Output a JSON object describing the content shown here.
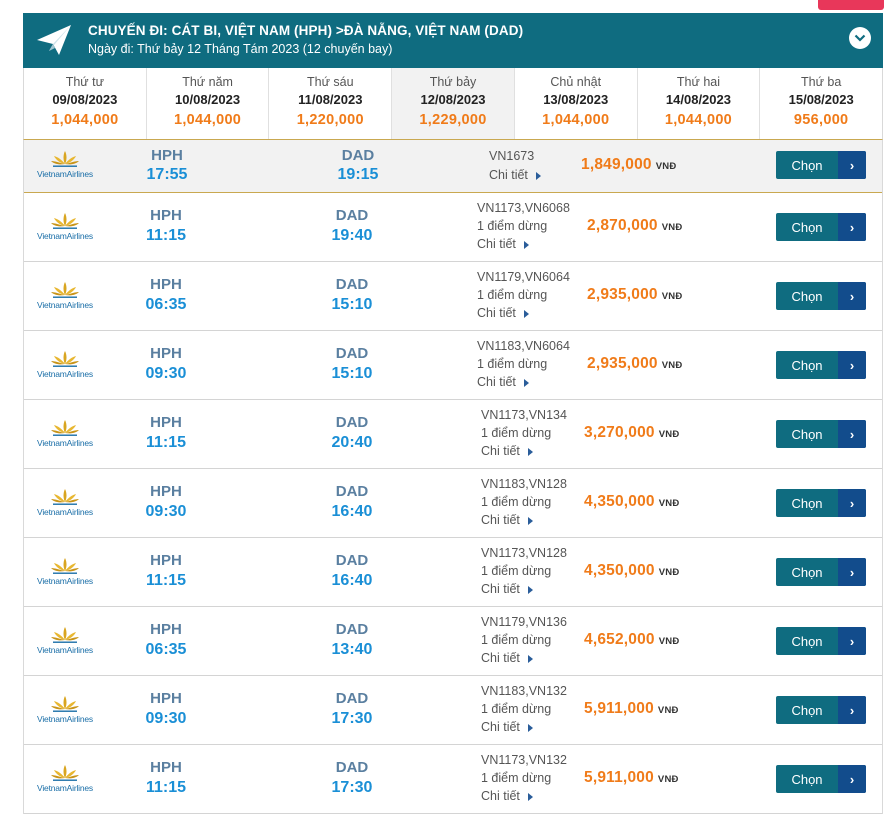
{
  "header": {
    "title": "CHUYẾN ĐI: CÁT BI, VIỆT NAM (HPH) >ĐÀ NẴNG, VIỆT NAM (DAD)",
    "subtitle": "Ngày đi: Thứ bảy 12 Tháng Tám 2023 (12 chuyến bay)",
    "icon": "paper-plane-icon",
    "toggle_icon": "chevron-down-icon",
    "colors": {
      "bar": "#0f6c80",
      "price": "#f07b19",
      "time": "#1a8fd6",
      "button": "#0f6c80",
      "button_arrow": "#124c8c"
    }
  },
  "dates": [
    {
      "day": "Thứ tư",
      "date": "09/08/2023",
      "price": "1,044,000"
    },
    {
      "day": "Thứ năm",
      "date": "10/08/2023",
      "price": "1,044,000"
    },
    {
      "day": "Thứ sáu",
      "date": "11/08/2023",
      "price": "1,220,000"
    },
    {
      "day": "Thứ bảy",
      "date": "12/08/2023",
      "price": "1,229,000",
      "selected": true
    },
    {
      "day": "Chủ nhật",
      "date": "13/08/2023",
      "price": "1,044,000"
    },
    {
      "day": "Thứ hai",
      "date": "14/08/2023",
      "price": "1,044,000"
    },
    {
      "day": "Thứ ba",
      "date": "15/08/2023",
      "price": "956,000"
    }
  ],
  "airline": {
    "name": "VietnamAirlines",
    "logo_icon": "lotus-logo-icon"
  },
  "labels": {
    "detail": "Chi tiết",
    "currency": "VNĐ",
    "select": "Chọn",
    "arrow": "›"
  },
  "flights": [
    {
      "from": "HPH",
      "dep": "17:55",
      "to": "DAD",
      "arr": "19:15",
      "flight": "VN1673",
      "stops": "",
      "price": "1,849,000"
    },
    {
      "from": "HPH",
      "dep": "11:15",
      "to": "DAD",
      "arr": "19:40",
      "flight": "VN1173,VN6068",
      "stops": "1 điểm dừng",
      "price": "2,870,000"
    },
    {
      "from": "HPH",
      "dep": "06:35",
      "to": "DAD",
      "arr": "15:10",
      "flight": "VN1179,VN6064",
      "stops": "1 điểm dừng",
      "price": "2,935,000"
    },
    {
      "from": "HPH",
      "dep": "09:30",
      "to": "DAD",
      "arr": "15:10",
      "flight": "VN1183,VN6064",
      "stops": "1 điểm dừng",
      "price": "2,935,000"
    },
    {
      "from": "HPH",
      "dep": "11:15",
      "to": "DAD",
      "arr": "20:40",
      "flight": "VN1173,VN134",
      "stops": "1 điểm dừng",
      "price": "3,270,000"
    },
    {
      "from": "HPH",
      "dep": "09:30",
      "to": "DAD",
      "arr": "16:40",
      "flight": "VN1183,VN128",
      "stops": "1 điểm dừng",
      "price": "4,350,000"
    },
    {
      "from": "HPH",
      "dep": "11:15",
      "to": "DAD",
      "arr": "16:40",
      "flight": "VN1173,VN128",
      "stops": "1 điểm dừng",
      "price": "4,350,000"
    },
    {
      "from": "HPH",
      "dep": "06:35",
      "to": "DAD",
      "arr": "13:40",
      "flight": "VN1179,VN136",
      "stops": "1 điểm dừng",
      "price": "4,652,000"
    },
    {
      "from": "HPH",
      "dep": "09:30",
      "to": "DAD",
      "arr": "17:30",
      "flight": "VN1183,VN132",
      "stops": "1 điểm dừng",
      "price": "5,911,000"
    },
    {
      "from": "HPH",
      "dep": "11:15",
      "to": "DAD",
      "arr": "17:30",
      "flight": "VN1173,VN132",
      "stops": "1 điểm dừng",
      "price": "5,911,000"
    }
  ]
}
